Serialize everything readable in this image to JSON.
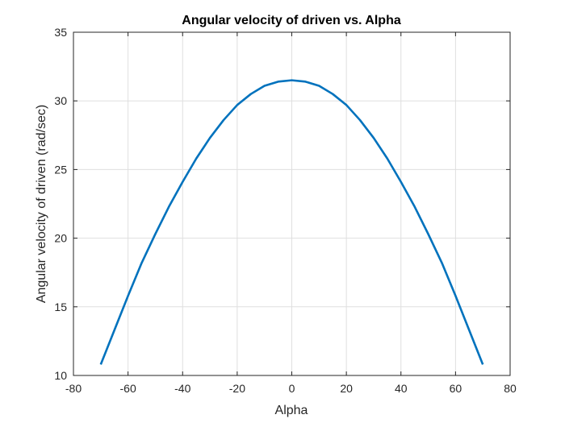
{
  "chart_data": {
    "type": "line",
    "title": "Angular velocity of driven vs. Alpha",
    "xlabel": "Alpha",
    "ylabel": "Angular velocity of driven (rad/sec)",
    "xlim": [
      -80,
      80
    ],
    "ylim": [
      10,
      35
    ],
    "xticks": [
      -80,
      -60,
      -40,
      -20,
      0,
      20,
      40,
      60,
      80
    ],
    "yticks": [
      10,
      15,
      20,
      25,
      30,
      35
    ],
    "grid": true,
    "legend": "none",
    "series": [
      {
        "color": "#0072BD",
        "x": [
          -70,
          -65,
          -60,
          -55,
          -50,
          -45,
          -40,
          -35,
          -30,
          -25,
          -20,
          -15,
          -10,
          -5,
          0,
          5,
          10,
          15,
          20,
          25,
          30,
          35,
          40,
          45,
          50,
          55,
          60,
          65,
          70
        ],
        "y": [
          10.8,
          13.3,
          15.8,
          18.2,
          20.3,
          22.3,
          24.1,
          25.8,
          27.3,
          28.6,
          29.7,
          30.5,
          31.1,
          31.4,
          31.5,
          31.4,
          31.1,
          30.5,
          29.7,
          28.6,
          27.3,
          25.8,
          24.1,
          22.3,
          20.3,
          18.2,
          15.8,
          13.3,
          10.8
        ]
      }
    ]
  }
}
